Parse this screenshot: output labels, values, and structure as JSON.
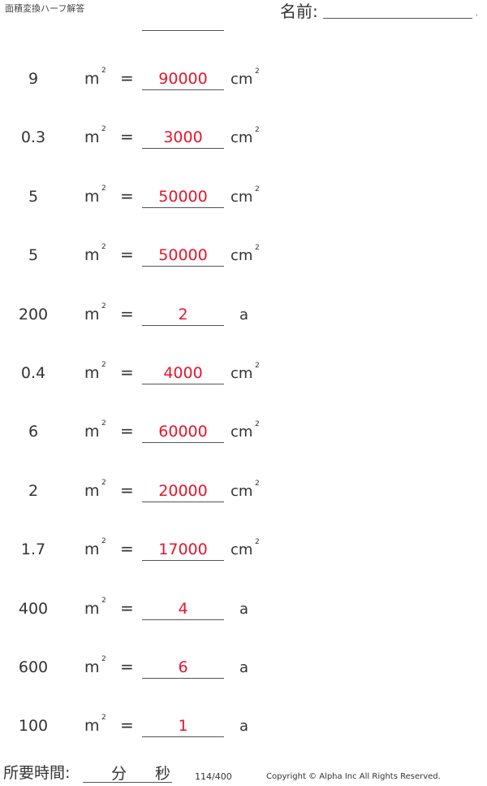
{
  "header": {
    "title": "面積変換ハーフ解答",
    "name_label": "名前:",
    "name_dot": "."
  },
  "colors": {
    "answer": "#e8142b",
    "text": "#333333"
  },
  "problems": [
    {
      "value": "9",
      "from_unit": "m",
      "answer": "90000",
      "to_unit": "cm"
    },
    {
      "value": "0.3",
      "from_unit": "m",
      "answer": "3000",
      "to_unit": "cm"
    },
    {
      "value": "5",
      "from_unit": "m",
      "answer": "50000",
      "to_unit": "cm"
    },
    {
      "value": "5",
      "from_unit": "m",
      "answer": "50000",
      "to_unit": "cm"
    },
    {
      "value": "200",
      "from_unit": "m",
      "answer": "2",
      "to_unit": "a"
    },
    {
      "value": "0.4",
      "from_unit": "m",
      "answer": "4000",
      "to_unit": "cm"
    },
    {
      "value": "6",
      "from_unit": "m",
      "answer": "60000",
      "to_unit": "cm"
    },
    {
      "value": "2",
      "from_unit": "m",
      "answer": "20000",
      "to_unit": "cm"
    },
    {
      "value": "1.7",
      "from_unit": "m",
      "answer": "17000",
      "to_unit": "cm"
    },
    {
      "value": "400",
      "from_unit": "m",
      "answer": "4",
      "to_unit": "a"
    },
    {
      "value": "600",
      "from_unit": "m",
      "answer": "6",
      "to_unit": "a"
    },
    {
      "value": "100",
      "from_unit": "m",
      "answer": "1",
      "to_unit": "a"
    }
  ],
  "symbols": {
    "equals": "=",
    "squared": "2"
  },
  "footer": {
    "time_label": "所要時間:",
    "minutes": "分",
    "seconds": "秒",
    "page": "114/400",
    "copyright": "Copyright © Alpha Inc All Rights Reserved."
  }
}
